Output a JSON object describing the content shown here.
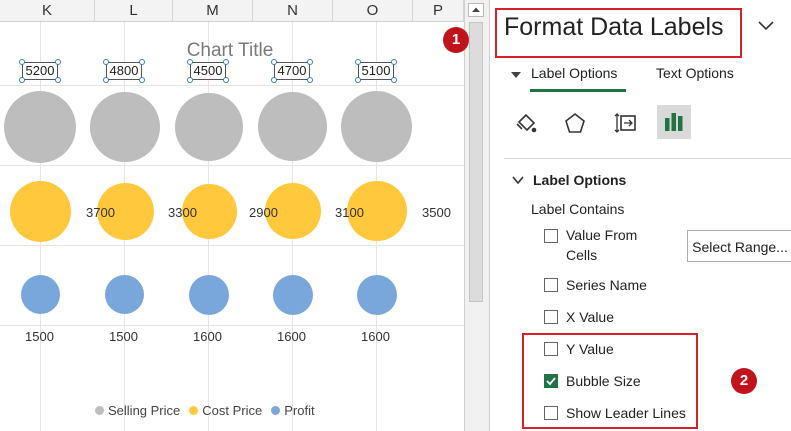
{
  "sheet": {
    "columns": [
      "K",
      "L",
      "M",
      "N",
      "O",
      "P"
    ],
    "chart": {
      "title": "Chart Title",
      "top_labels": [
        "5200",
        "4800",
        "4500",
        "4700",
        "5100"
      ],
      "middle_labels": [
        "3700",
        "3300",
        "2900",
        "3100",
        "3500"
      ],
      "bottom_labels": [
        "1500",
        "1500",
        "1600",
        "1600",
        "1600"
      ],
      "legend": [
        {
          "name": "Selling Price",
          "color": "#bdbdbd"
        },
        {
          "name": "Cost Price",
          "color": "#ffc83d"
        },
        {
          "name": "Profit",
          "color": "#7aa7db"
        }
      ]
    }
  },
  "pane": {
    "title": "Format Data Labels",
    "tabs": {
      "label_options": "Label Options",
      "text_options": "Text Options"
    },
    "icons": [
      "fill-line-icon",
      "effects-pentagon-icon",
      "size-properties-icon",
      "label-options-bar-icon"
    ],
    "section": "Label Options",
    "label_contains": "Label Contains",
    "options": {
      "value_from_cells_line1": "Value From",
      "value_from_cells_line2": "Cells",
      "select_range": "Select Range...",
      "series_name": "Series Name",
      "x_value": "X Value",
      "y_value": "Y Value",
      "bubble_size": "Bubble Size",
      "show_leader_lines": "Show Leader Lines"
    },
    "checked": {
      "value_from_cells": false,
      "series_name": false,
      "x_value": false,
      "y_value": false,
      "bubble_size": true,
      "show_leader_lines": false
    },
    "markers": [
      "1",
      "2"
    ],
    "colors": {
      "accent": "#217346",
      "callout": "#d6212b",
      "marker": "#c0131c"
    }
  }
}
